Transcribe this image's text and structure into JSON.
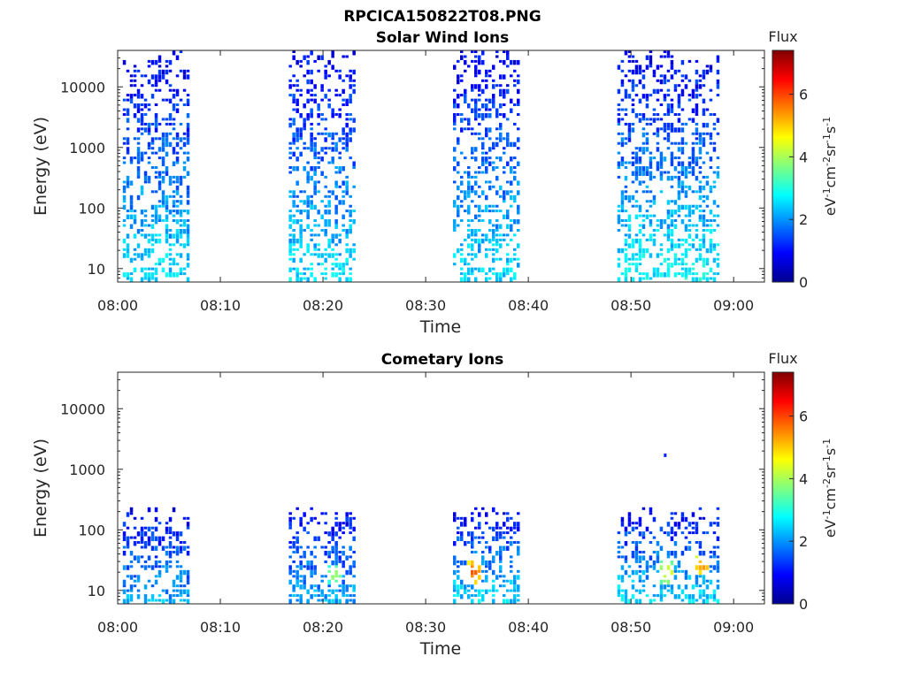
{
  "figure": {
    "title": "RPCICA150822T08.PNG"
  },
  "colors": {
    "background": "#ffffff",
    "axis": "#262626"
  },
  "chart_data": [
    {
      "type": "heatmap",
      "title": "Solar Wind Ions",
      "xlabel": "Time",
      "ylabel": "Energy (eV)",
      "yscale": "log",
      "xlim": [
        "08:00",
        "09:03"
      ],
      "ylim": [
        6,
        40000
      ],
      "x_ticks": [
        "08:00",
        "08:10",
        "08:20",
        "08:30",
        "08:40",
        "08:50",
        "09:00"
      ],
      "y_ticks": [
        "10",
        "100",
        "1000",
        "10000"
      ],
      "grid": false,
      "colorbar": {
        "label": "Flux",
        "units": "eV-1cm-2sr-1s-1",
        "range": [
          0,
          7.4
        ],
        "ticks": [
          "0",
          "2",
          "4",
          "6"
        ],
        "colormap": "jet"
      },
      "data_intervals": [
        {
          "start": "08:00:30",
          "end": "08:07:00",
          "flux_low_energy": 2.6,
          "flux_high_energy": 0.8,
          "top_energy": 40000
        },
        {
          "start": "08:16:40",
          "end": "08:23:10",
          "flux_low_energy": 2.6,
          "flux_high_energy": 0.8,
          "top_energy": 40000
        },
        {
          "start": "08:32:40",
          "end": "08:39:10",
          "flux_low_energy": 2.6,
          "flux_high_energy": 0.8,
          "top_energy": 40000
        },
        {
          "start": "08:48:40",
          "end": "08:58:30",
          "flux_low_energy": 2.8,
          "flux_high_energy": 0.8,
          "top_energy": 40000
        }
      ]
    },
    {
      "type": "heatmap",
      "title": "Cometary Ions",
      "xlabel": "Time",
      "ylabel": "Energy (eV)",
      "yscale": "log",
      "xlim": [
        "08:00",
        "09:03"
      ],
      "ylim": [
        6,
        40000
      ],
      "x_ticks": [
        "08:00",
        "08:10",
        "08:20",
        "08:30",
        "08:40",
        "08:50",
        "09:00"
      ],
      "y_ticks": [
        "10",
        "100",
        "1000",
        "10000"
      ],
      "grid": false,
      "colorbar": {
        "label": "Flux",
        "units": "eV-1cm-2sr-1s-1",
        "range": [
          0,
          7.4
        ],
        "ticks": [
          "0",
          "2",
          "4",
          "6"
        ],
        "colormap": "jet"
      },
      "data_intervals": [
        {
          "start": "08:00:30",
          "end": "08:07:00",
          "flux_low_energy": 2.2,
          "flux_high_energy": 0.9,
          "top_energy": 200
        },
        {
          "start": "08:16:40",
          "end": "08:23:10",
          "flux_low_energy": 2.2,
          "flux_high_energy": 0.9,
          "top_energy": 200
        },
        {
          "start": "08:32:40",
          "end": "08:39:10",
          "flux_low_energy": 2.6,
          "flux_high_energy": 0.9,
          "top_energy": 200
        },
        {
          "start": "08:48:40",
          "end": "08:58:30",
          "flux_low_energy": 2.6,
          "flux_high_energy": 0.9,
          "top_energy": 200
        }
      ],
      "hotspots": [
        {
          "time": "08:34:30",
          "energy": 20,
          "flux": 6.0
        },
        {
          "time": "08:53:20",
          "energy": 20,
          "flux": 4.8
        },
        {
          "time": "08:56:50",
          "energy": 25,
          "flux": 5.6
        },
        {
          "time": "08:21:00",
          "energy": 18,
          "flux": 4.2
        }
      ],
      "isolated_points": [
        {
          "time": "08:53:20",
          "energy": 1700,
          "flux": 1.2
        }
      ]
    }
  ]
}
